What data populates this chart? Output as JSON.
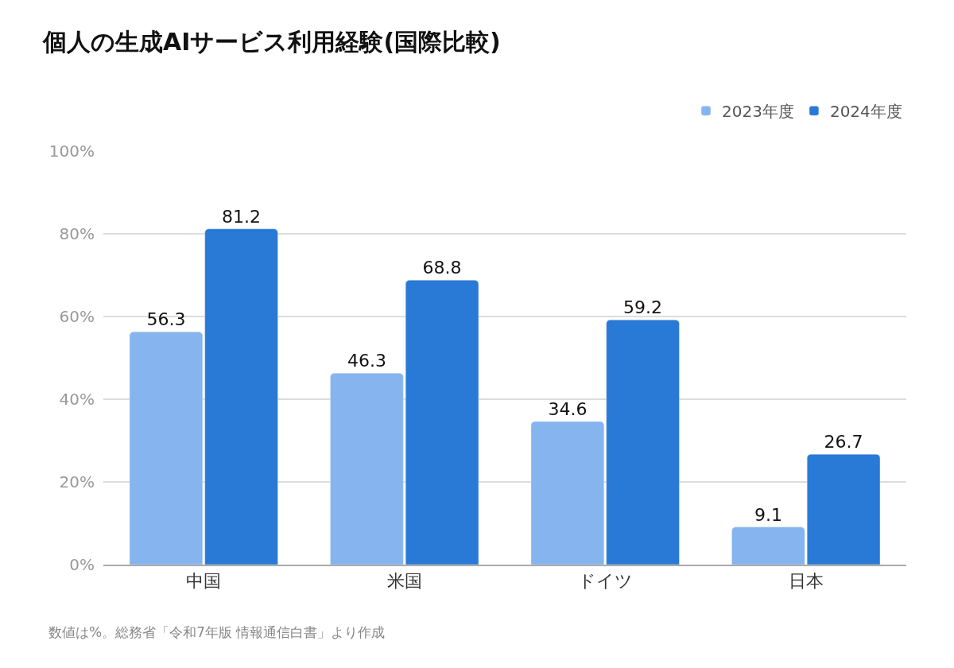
{
  "chart_data": {
    "type": "bar",
    "title": "個人の生成AIサービス利用経験(国際比較)",
    "categories": [
      "中国",
      "米国",
      "ドイツ",
      "日本"
    ],
    "series": [
      {
        "name": "2023年度",
        "color": "#86b4ee",
        "values": [
          56.3,
          46.3,
          34.6,
          9.1
        ]
      },
      {
        "name": "2024年度",
        "color": "#2979d6",
        "values": [
          81.2,
          68.8,
          59.2,
          26.7
        ]
      }
    ],
    "ylim": [
      0,
      100
    ],
    "yticks": [
      {
        "value": 0,
        "label": "0%"
      },
      {
        "value": 20,
        "label": "20%"
      },
      {
        "value": 40,
        "label": "40%"
      },
      {
        "value": 60,
        "label": "60%"
      },
      {
        "value": 80,
        "label": "80%"
      },
      {
        "value": 100,
        "label": "100%"
      }
    ],
    "grid": "y",
    "legend": "top right",
    "data_labels": true,
    "annotations": [
      "数値は%。総務省「令和7年版 情報通信白書」より作成"
    ]
  }
}
